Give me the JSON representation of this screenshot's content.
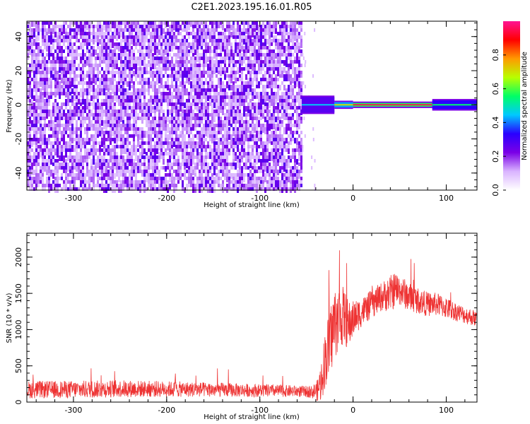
{
  "title": "C2E1.2023.195.16.01.R05",
  "chart_data": [
    {
      "type": "heatmap",
      "description_x": "Height of straight line (km)",
      "xlabel": "Height of straight line (km)",
      "ylabel": "Frequency (Hz)",
      "xlim": [
        -350,
        133
      ],
      "ylim": [
        -50,
        49
      ],
      "x_ticks": [
        -300,
        -200,
        -100,
        0,
        100
      ],
      "x_tick_labels": [
        "-300",
        "-200",
        "-100",
        "0",
        "100"
      ],
      "y_ticks": [
        -40,
        -20,
        0,
        20,
        40
      ],
      "y_tick_labels": [
        "-40",
        "-20",
        "0",
        "20",
        "40"
      ],
      "noise_region_x": [
        -350,
        -55
      ],
      "signal_band": [
        {
          "x": [
            -55,
            -20
          ],
          "half_width_hz": 5,
          "amplitude": 0.45
        },
        {
          "x": [
            -20,
            0
          ],
          "half_width_hz": 2,
          "amplitude": 0.7
        },
        {
          "x": [
            0,
            85
          ],
          "half_width_hz": 1.5,
          "amplitude": 0.95
        },
        {
          "x": [
            85,
            133
          ],
          "half_width_hz": 3,
          "amplitude": 0.55
        }
      ],
      "colorbar": {
        "label": "Normalized spectral amplitude",
        "range": [
          0.0,
          1.0
        ],
        "ticks": [
          0.0,
          0.2,
          0.4,
          0.6,
          0.8
        ],
        "tick_labels": [
          "0.0",
          "0.2",
          "0.4",
          "0.6",
          "0.8"
        ],
        "colors": [
          "#ffffff",
          "#d9b3ff",
          "#7a00e6",
          "#2a00ff",
          "#00c8ff",
          "#00ff66",
          "#b8ff00",
          "#ff9a00",
          "#ff0000",
          "#ff1493"
        ]
      },
      "grid": false
    },
    {
      "type": "line",
      "xlabel": "Height of straight line (km)",
      "ylabel": "SNR (10 * v/v)",
      "xlim": [
        -350,
        133
      ],
      "ylim": [
        0,
        2330
      ],
      "x_ticks": [
        -300,
        -200,
        -100,
        0,
        100
      ],
      "x_tick_labels": [
        "-300",
        "-200",
        "-100",
        "0",
        "100"
      ],
      "y_ticks": [
        0,
        500,
        1000,
        1500,
        2000
      ],
      "y_tick_labels": [
        "0",
        "500",
        "1000",
        "1500",
        "2000"
      ],
      "series": [
        {
          "color": "#ee3333",
          "x": [
            -350,
            -300,
            -250,
            -200,
            -150,
            -100,
            -60,
            -45,
            -38,
            -34,
            -30,
            -25,
            -20,
            -15,
            -10,
            -5,
            0,
            10,
            20,
            30,
            40,
            45,
            50,
            60,
            70,
            80,
            90,
            100,
            110,
            120,
            133
          ],
          "y": [
            170,
            175,
            185,
            180,
            170,
            160,
            150,
            140,
            160,
            300,
            600,
            800,
            1100,
            1150,
            1200,
            1050,
            1150,
            1250,
            1350,
            1450,
            1500,
            1550,
            1550,
            1450,
            1400,
            1350,
            1350,
            1300,
            1250,
            1200,
            1150
          ],
          "noise_amplitude": [
            120,
            120,
            120,
            110,
            100,
            90,
            80,
            80,
            150,
            300,
            400,
            500,
            500,
            450,
            400,
            350,
            250,
            200,
            200,
            200,
            250,
            250,
            220,
            200,
            180,
            170,
            160,
            150,
            130,
            120,
            110
          ]
        }
      ],
      "grid": false
    }
  ]
}
